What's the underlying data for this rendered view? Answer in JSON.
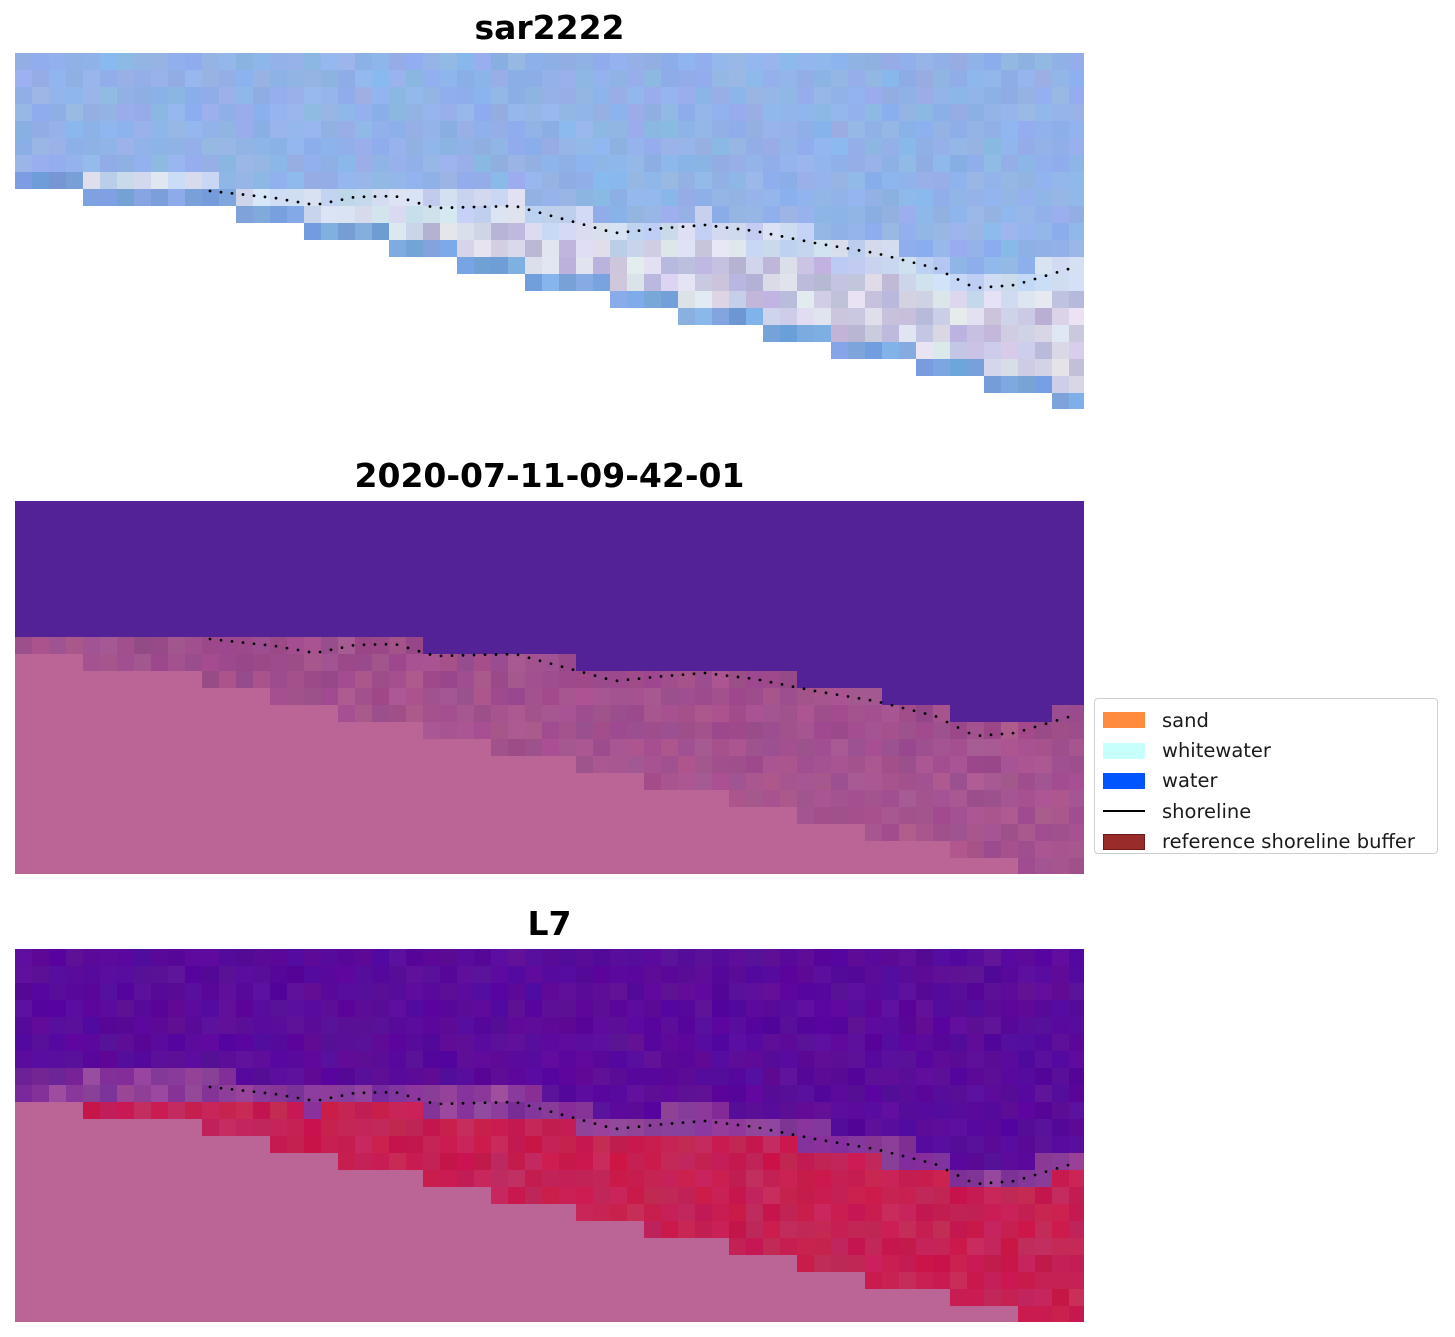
{
  "panels": [
    {
      "title": "sar2222"
    },
    {
      "title": "2020-07-11-09-42-01"
    },
    {
      "title": "L7"
    }
  ],
  "legend": {
    "items": [
      {
        "label": "sand",
        "color": "#fe8c3c",
        "type": "patch"
      },
      {
        "label": "whitewater",
        "color": "#c7fffd",
        "type": "patch"
      },
      {
        "label": "water",
        "color": "#0055ff",
        "type": "patch"
      },
      {
        "label": "shoreline",
        "color": "#000000",
        "type": "line"
      },
      {
        "label": "reference shoreline buffer",
        "color": "#9a2b2b",
        "type": "patch"
      }
    ]
  },
  "colors": {
    "land": "#bb6596",
    "ocean_classified": "#532296",
    "ocean_l7": "#5f0f99",
    "buffer_red": "#c8164a",
    "sar_sky": "#8db4e8",
    "sar_foam": "#e8eaf3"
  }
}
